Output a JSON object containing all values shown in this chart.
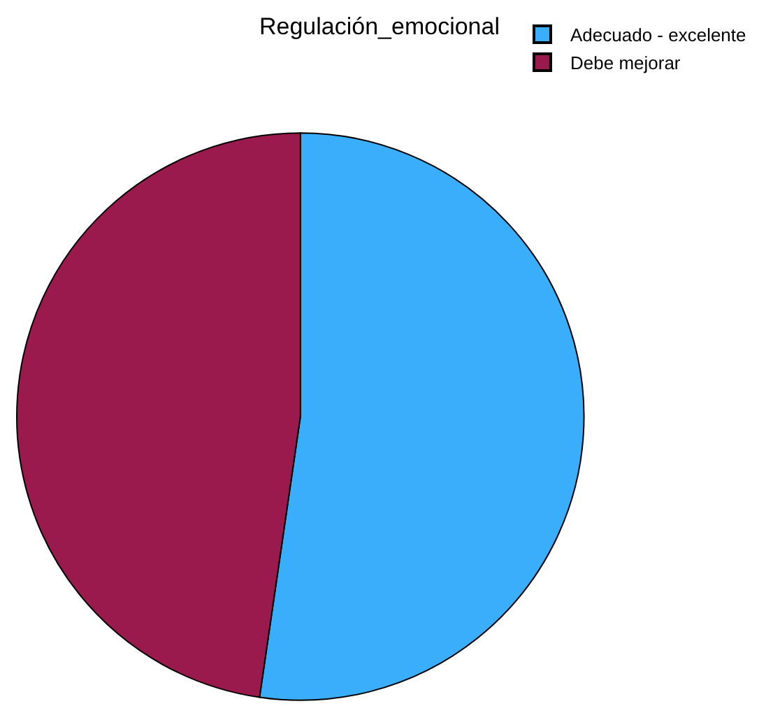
{
  "chart_data": {
    "type": "pie",
    "title": "Regulación_emocional",
    "categories": [
      "Adecuado - excelente",
      "Debe mejorar"
    ],
    "values": [
      52.3,
      47.7
    ],
    "colors": [
      "#3aaefa",
      "#9b1a4e"
    ],
    "legend": "top right"
  }
}
